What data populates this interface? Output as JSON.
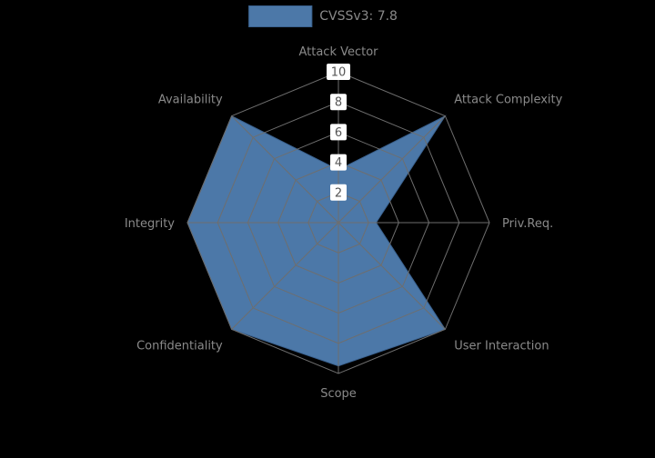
{
  "page": {
    "background": "#000000"
  },
  "legend": {
    "label": "CVSSv3: 7.8",
    "swatch_color": "#4c78a8",
    "swatch_border": "#3a618e"
  },
  "chart_data": {
    "type": "radar",
    "title": "",
    "categories": [
      "Attack Vector",
      "Attack Complexity",
      "Priv.Req.",
      "User Interaction",
      "Scope",
      "Confidentiality",
      "Integrity",
      "Availability"
    ],
    "series": [
      {
        "name": "CVSSv3: 7.8",
        "values": [
          3.5,
          10,
          2.5,
          10,
          9.5,
          10,
          10,
          10
        ]
      }
    ],
    "radial_ticks": [
      2,
      4,
      6,
      8,
      10
    ],
    "rmin": 0,
    "rmax": 10,
    "grid": true,
    "legend_position": "top",
    "style": {
      "fill_color": "#4c78a8",
      "stroke_color": "#3a618e",
      "grid_color": "#6e6e6e",
      "axis_label_color": "#8a8a8a",
      "tick_text_color": "#555555",
      "tick_box_color": "#ffffff"
    }
  }
}
